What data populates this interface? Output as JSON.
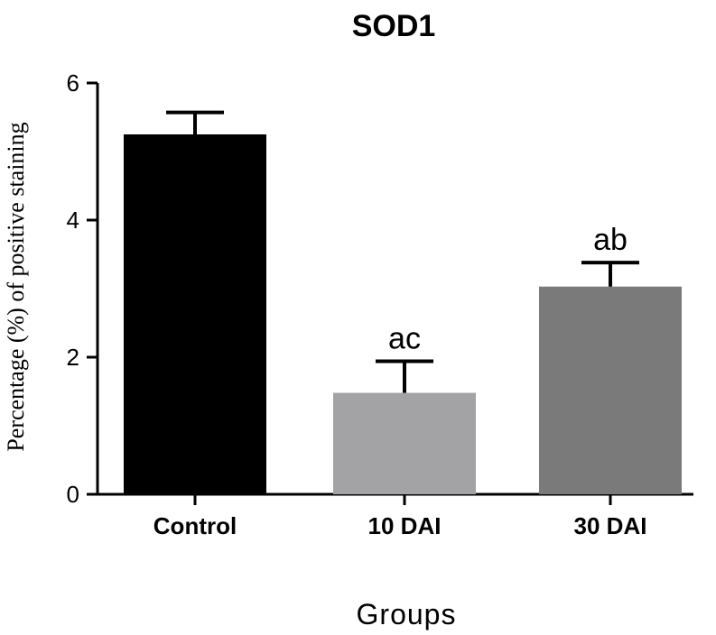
{
  "chart_data": {
    "type": "bar",
    "title": "SOD1",
    "xlabel": "Groups",
    "ylabel": "Percentage (%) of positive staining",
    "categories": [
      "Control",
      "10 DAI",
      "30 DAI"
    ],
    "values": [
      5.25,
      1.48,
      3.03
    ],
    "errors": [
      0.32,
      0.46,
      0.35
    ],
    "annotations": [
      "",
      "ac",
      "ab"
    ],
    "colors": [
      "#000000",
      "#a3a3a6",
      "#7a7a7a"
    ],
    "ylim": [
      0,
      6
    ],
    "yticks": [
      "0",
      "2",
      "4",
      "6"
    ],
    "grid": false,
    "legend": "none"
  }
}
